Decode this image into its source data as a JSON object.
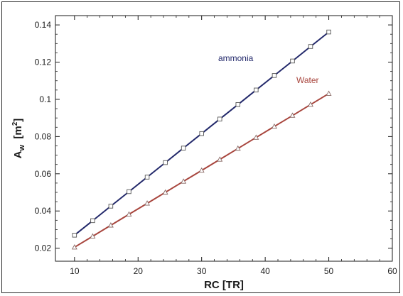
{
  "chart_data": {
    "type": "line",
    "title": "",
    "xlabel": "RC  [TR]",
    "ylabel": {
      "main": "A",
      "sub": "w",
      "unit_open": "  [m",
      "unit_sup": "2",
      "unit_close": "]"
    },
    "xlim": [
      7,
      60
    ],
    "ylim": [
      0.013,
      0.145
    ],
    "x_ticks": [
      10,
      20,
      30,
      40,
      50,
      60
    ],
    "x_tick_labels": [
      "10",
      "20",
      "30",
      "40",
      "50",
      "60"
    ],
    "y_ticks": [
      0.02,
      0.04,
      0.06,
      0.08,
      0.1,
      0.12,
      0.14
    ],
    "y_tick_labels": [
      "0.02",
      "0.04",
      "0.06",
      "0.08",
      "0.1",
      "0.12",
      "0.14"
    ],
    "grid": false,
    "legend": "inline labels",
    "x": [
      10,
      12.86,
      15.71,
      18.57,
      21.43,
      24.29,
      27.14,
      30,
      32.86,
      35.71,
      38.57,
      41.43,
      44.29,
      47.14,
      50
    ],
    "series": [
      {
        "name": "ammonia",
        "marker": "square",
        "color": "#23296b",
        "values": [
          0.027,
          0.0348,
          0.0426,
          0.0504,
          0.0582,
          0.066,
          0.0738,
          0.0816,
          0.0894,
          0.0972,
          0.105,
          0.1128,
          0.1206,
          0.1284,
          0.1362
        ]
      },
      {
        "name": "Water",
        "marker": "triangle",
        "color": "#a8453d",
        "values": [
          0.0205,
          0.0264,
          0.0323,
          0.0382,
          0.0441,
          0.05,
          0.0559,
          0.0618,
          0.0677,
          0.0736,
          0.0795,
          0.0854,
          0.0913,
          0.0972,
          0.1031
        ]
      }
    ]
  }
}
